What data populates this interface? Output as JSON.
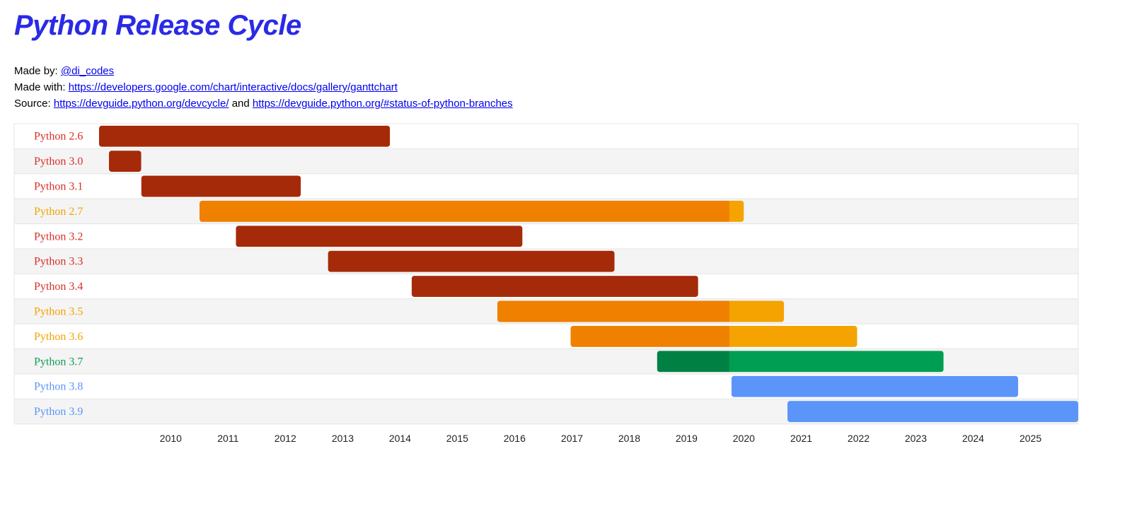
{
  "page": {
    "title": "Python Release Cycle",
    "made_by_label": "Made by:",
    "made_by_link": "@di_codes",
    "made_with_label": "Made with:",
    "made_with_link": "https://developers.google.com/chart/interactive/docs/gallery/ganttchart",
    "source_label": "Source:",
    "source_link1": "https://devguide.python.org/devcycle/",
    "source_and": "and",
    "source_link2": "https://devguide.python.org/#status-of-python-branches"
  },
  "chart_data": {
    "type": "gantt",
    "xaxis": {
      "ticks": [
        "2010",
        "2011",
        "2012",
        "2013",
        "2014",
        "2015",
        "2016",
        "2017",
        "2018",
        "2019",
        "2020",
        "2021",
        "2022",
        "2023",
        "2024",
        "2025"
      ],
      "range": [
        "2008-10-01",
        "2025-11-01"
      ]
    },
    "colors": {
      "end_of_life": "#a52a0a",
      "bugfix": "#ef8000",
      "security": "#f4a300",
      "green_dark": "#008043",
      "green": "#009e52",
      "blue": "#5b95f9",
      "label_red": "#d93025",
      "label_orange": "#f4a300",
      "label_green": "#0f9d58",
      "label_blue": "#5b95f9",
      "row_alt": "#f4f4f4"
    },
    "rows": [
      {
        "label": "Python 2.6",
        "label_color": "label_red",
        "segments": [
          {
            "start": "2008-10-01",
            "end": "2013-10-29",
            "color": "end_of_life"
          }
        ]
      },
      {
        "label": "Python 3.0",
        "label_color": "label_red",
        "segments": [
          {
            "start": "2008-12-03",
            "end": "2009-06-27",
            "color": "end_of_life"
          }
        ]
      },
      {
        "label": "Python 3.1",
        "label_color": "label_red",
        "segments": [
          {
            "start": "2009-06-27",
            "end": "2012-04-09",
            "color": "end_of_life"
          }
        ]
      },
      {
        "label": "Python 2.7",
        "label_color": "label_orange",
        "segments": [
          {
            "start": "2010-07-03",
            "end": "2019-10-01",
            "color": "bugfix"
          },
          {
            "start": "2019-10-01",
            "end": "2020-01-01",
            "color": "security"
          }
        ]
      },
      {
        "label": "Python 3.2",
        "label_color": "label_red",
        "segments": [
          {
            "start": "2011-02-20",
            "end": "2016-02-20",
            "color": "end_of_life"
          }
        ]
      },
      {
        "label": "Python 3.3",
        "label_color": "label_red",
        "segments": [
          {
            "start": "2012-09-29",
            "end": "2017-09-29",
            "color": "end_of_life"
          }
        ]
      },
      {
        "label": "Python 3.4",
        "label_color": "label_red",
        "segments": [
          {
            "start": "2014-03-16",
            "end": "2019-03-16",
            "color": "end_of_life"
          }
        ]
      },
      {
        "label": "Python 3.5",
        "label_color": "label_orange",
        "segments": [
          {
            "start": "2015-09-13",
            "end": "2019-10-01",
            "color": "bugfix"
          },
          {
            "start": "2019-10-01",
            "end": "2020-09-13",
            "color": "security"
          }
        ]
      },
      {
        "label": "Python 3.6",
        "label_color": "label_orange",
        "segments": [
          {
            "start": "2016-12-23",
            "end": "2019-10-01",
            "color": "bugfix"
          },
          {
            "start": "2019-10-01",
            "end": "2021-12-23",
            "color": "security"
          }
        ]
      },
      {
        "label": "Python 3.7",
        "label_color": "label_green",
        "segments": [
          {
            "start": "2018-06-27",
            "end": "2019-10-01",
            "color": "green_dark"
          },
          {
            "start": "2019-10-01",
            "end": "2023-06-27",
            "color": "green"
          }
        ]
      },
      {
        "label": "Python 3.8",
        "label_color": "label_blue",
        "segments": [
          {
            "start": "2019-10-14",
            "end": "2024-10-14",
            "color": "blue"
          }
        ]
      },
      {
        "label": "Python 3.9",
        "label_color": "label_blue",
        "segments": [
          {
            "start": "2020-10-05",
            "end": "2025-11-01",
            "color": "blue"
          }
        ]
      }
    ]
  }
}
